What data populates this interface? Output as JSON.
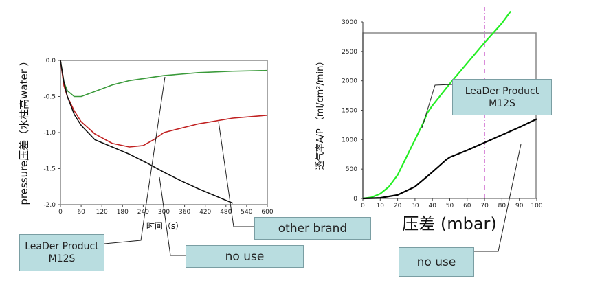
{
  "chart_data": [
    {
      "type": "line",
      "ylabel": "pressure压差（水柱高water ）",
      "xlabel": "时间（s）",
      "x_ticks": [
        "0",
        "60",
        "120",
        "180",
        "240",
        "300",
        "360",
        "420",
        "480",
        "540",
        "600"
      ],
      "y_ticks": [
        "0.0",
        "-0.5",
        "-1.0",
        "-1.5",
        "-2.0"
      ],
      "xlim": [
        0,
        600
      ],
      "ylim": [
        -2.0,
        0.0
      ],
      "series": [
        {
          "color": "#3a9a3a",
          "x": [
            0,
            10,
            20,
            40,
            60,
            100,
            150,
            200,
            300,
            400,
            500,
            600
          ],
          "y": [
            0,
            -0.3,
            -0.42,
            -0.5,
            -0.5,
            -0.43,
            -0.34,
            -0.28,
            -0.21,
            -0.17,
            -0.15,
            -0.14
          ]
        },
        {
          "color": "#c02020",
          "x": [
            0,
            10,
            20,
            40,
            60,
            100,
            150,
            200,
            240,
            270,
            300,
            400,
            500,
            600
          ],
          "y": [
            0,
            -0.35,
            -0.5,
            -0.7,
            -0.85,
            -1.02,
            -1.15,
            -1.2,
            -1.18,
            -1.1,
            -1.0,
            -0.88,
            -0.8,
            -0.76
          ]
        },
        {
          "color": "#111111",
          "x": [
            0,
            10,
            20,
            40,
            60,
            100,
            150,
            200,
            250,
            300,
            350,
            400,
            450,
            500
          ],
          "y": [
            0,
            -0.3,
            -0.5,
            -0.75,
            -0.9,
            -1.1,
            -1.2,
            -1.3,
            -1.42,
            -1.55,
            -1.67,
            -1.78,
            -1.88,
            -1.98
          ]
        }
      ]
    },
    {
      "type": "line",
      "ylabel": "透气率A/P （ml/cm²/min）",
      "xlabel": "压差 (mbar)",
      "x_ticks": [
        "0",
        "10",
        "20",
        "30",
        "40",
        "50",
        "60",
        "70",
        "80",
        "90",
        "100"
      ],
      "y_ticks": [
        "0",
        "500",
        "1000",
        "1500",
        "2000",
        "2500",
        "3000"
      ],
      "xlim": [
        0,
        100
      ],
      "ylim": [
        0,
        3000
      ],
      "reference_x": 70,
      "series": [
        {
          "color": "#22ee22",
          "x": [
            0,
            5,
            10,
            15,
            20,
            25,
            30,
            35,
            37,
            40,
            50,
            60,
            70,
            80,
            85
          ],
          "y": [
            0,
            20,
            80,
            200,
            400,
            700,
            1000,
            1300,
            1450,
            1580,
            1950,
            2300,
            2650,
            2980,
            3180
          ]
        },
        {
          "color": "#000000",
          "x": [
            0,
            10,
            20,
            30,
            40,
            48,
            50,
            60,
            70,
            80,
            90,
            100
          ],
          "y": [
            0,
            10,
            60,
            200,
            450,
            660,
            700,
            820,
            950,
            1080,
            1210,
            1350
          ]
        }
      ]
    }
  ],
  "callouts": {
    "left_product_line1": "LeaDer Product",
    "left_product_line2": "M12S",
    "no_use_1": "no use",
    "other_brand": "other brand",
    "no_use_2": "no use",
    "right_product_line1": "LeaDer Product",
    "right_product_line2": "M12S"
  }
}
